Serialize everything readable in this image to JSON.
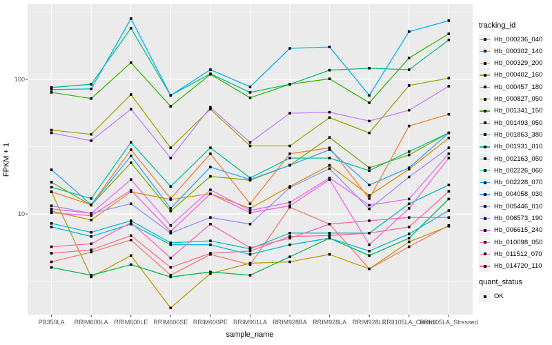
{
  "chart_data": {
    "type": "line",
    "title": "",
    "xlabel": "sample_name",
    "ylabel": "FPKM + 1",
    "y_scale": "log10",
    "ylim": [
      1.7,
      360
    ],
    "y_ticks": [
      {
        "label": "100",
        "value": 100
      },
      {
        "label": "10",
        "value": 10
      }
    ],
    "grid": "white major+minor gridlines on grey panel",
    "legend_position": "right",
    "panel_bg": "#EBEBEB",
    "grid_color": "#FFFFFF",
    "tick_label_color": "#4D4D4D",
    "point_marker": "filled-black-square",
    "point_color": "#000000",
    "categories": [
      "PB350LA",
      "RRIM600LA",
      "RRIM600LE",
      "RRIM600SE",
      "RRIM600PE",
      "RRIM901LA",
      "RRIM928BA",
      "RRIM928LA",
      "RRIM928LE",
      "RRII105LA_Control",
      "RRII105LA_Stressed"
    ],
    "legend": {
      "tracking_title": "tracking_id",
      "quant_title": "quant_status",
      "quant_ok_label": "OK"
    },
    "series": [
      {
        "name": "Hb_000236_040",
        "color": "#F8766D",
        "values": [
          4.4,
          5.2,
          6.4,
          3.5,
          5.0,
          4.2,
          11.2,
          8.4,
          3.9,
          5.7,
          8.2
        ]
      },
      {
        "name": "Hb_000302_140",
        "color": "#EA8331",
        "values": [
          14.6,
          11.7,
          30,
          13,
          28,
          11.9,
          28,
          31,
          13,
          45,
          55
        ]
      },
      {
        "name": "Hb_000329_200",
        "color": "#D89000",
        "values": [
          10.5,
          9.0,
          14.6,
          12.8,
          14.1,
          11,
          16,
          22.9,
          13.7,
          21.5,
          36.6
        ]
      },
      {
        "name": "Hb_000402_160",
        "color": "#C09B00",
        "values": [
          14.6,
          3.4,
          4.9,
          2.0,
          3.6,
          4.3,
          4.4,
          5.0,
          3.9,
          6.2,
          8.1
        ]
      },
      {
        "name": "Hb_000457_180",
        "color": "#A3A500",
        "values": [
          42,
          39,
          77,
          31,
          60,
          32,
          32,
          52,
          40,
          90,
          102
        ]
      },
      {
        "name": "Hb_000827_050",
        "color": "#7CAE00",
        "values": [
          17.2,
          11.6,
          24,
          10.5,
          19,
          17.8,
          23,
          37,
          22,
          27.4,
          40
        ]
      },
      {
        "name": "Hb_001341_150",
        "color": "#39B600",
        "values": [
          80,
          72,
          133,
          63,
          109,
          73,
          92,
          101,
          67,
          144,
          218
        ]
      },
      {
        "name": "Hb_001493_050",
        "color": "#00BB4E",
        "values": [
          4.0,
          3.5,
          4.2,
          3.4,
          3.7,
          3.5,
          4.8,
          6.6,
          4.9,
          6.6,
          12.9
        ]
      },
      {
        "name": "Hb_001863_380",
        "color": "#00BF7D",
        "values": [
          87,
          92,
          240,
          76,
          110,
          80,
          92,
          117,
          121,
          118,
          196
        ]
      },
      {
        "name": "Hb_001931_010",
        "color": "#00C1A3",
        "values": [
          15.8,
          13,
          34,
          16,
          31,
          18.5,
          26,
          26,
          21,
          29,
          40
        ]
      },
      {
        "name": "Hb_002163_050",
        "color": "#00BFC4",
        "values": [
          8.5,
          7.3,
          8.9,
          6.1,
          6.3,
          5.5,
          7.2,
          7.2,
          7.2,
          11.9,
          16.4
        ]
      },
      {
        "name": "Hb_002226_060",
        "color": "#00BAE0",
        "values": [
          8.0,
          6.8,
          8.4,
          5.9,
          5.9,
          5.0,
          5.9,
          6.6,
          5.3,
          7.1,
          10.6
        ]
      },
      {
        "name": "Hb_002228_070",
        "color": "#00B0F6",
        "values": [
          84,
          85,
          283,
          76,
          118,
          88,
          170,
          174,
          76,
          226,
          273
        ]
      },
      {
        "name": "Hb_004058_030",
        "color": "#35A2FF",
        "values": [
          21.3,
          11.7,
          27,
          11,
          22.3,
          18,
          23,
          30,
          16.4,
          22,
          40
        ]
      },
      {
        "name": "Hb_005446_010",
        "color": "#9590FF",
        "values": [
          11.5,
          10.1,
          11.9,
          7.2,
          9.4,
          8.4,
          15.7,
          21.7,
          10.9,
          18.8,
          31
        ]
      },
      {
        "name": "Hb_006573_190",
        "color": "#C77CFF",
        "values": [
          40,
          35,
          60,
          26,
          62,
          34,
          56,
          57,
          49,
          59,
          89
        ]
      },
      {
        "name": "Hb_006615_240",
        "color": "#E76BF3",
        "values": [
          10.9,
          10.1,
          18,
          8.2,
          15.1,
          10.6,
          12.2,
          18.5,
          11.6,
          12.9,
          28
        ]
      },
      {
        "name": "Hb_010098_050",
        "color": "#FA62DB",
        "values": [
          10.2,
          9.7,
          15,
          7.4,
          14.1,
          10.2,
          11.5,
          18,
          5.9,
          11,
          26
        ]
      },
      {
        "name": "Hb_011512_070",
        "color": "#FF62BC",
        "values": [
          5.7,
          6.0,
          8.6,
          4.7,
          8.4,
          5.6,
          6.6,
          8.4,
          8.9,
          9.4,
          9.4
        ]
      },
      {
        "name": "Hb_014720_110",
        "color": "#FF6A98",
        "values": [
          5.1,
          5.4,
          6.9,
          4.0,
          5.1,
          5.3,
          6.8,
          6.9,
          7.2,
          8.0,
          14.7
        ]
      }
    ]
  }
}
